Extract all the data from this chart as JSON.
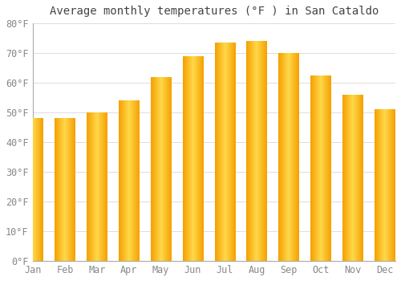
{
  "title": "Average monthly temperatures (°F ) in San Cataldo",
  "months": [
    "Jan",
    "Feb",
    "Mar",
    "Apr",
    "May",
    "Jun",
    "Jul",
    "Aug",
    "Sep",
    "Oct",
    "Nov",
    "Dec"
  ],
  "values": [
    48,
    48,
    50,
    54,
    62,
    69,
    73.5,
    74,
    70,
    62.5,
    56,
    51
  ],
  "bar_color_edge": "#F5A000",
  "bar_color_center": "#FFD84A",
  "ylim": [
    0,
    80
  ],
  "yticks": [
    0,
    10,
    20,
    30,
    40,
    50,
    60,
    70,
    80
  ],
  "ytick_labels": [
    "0°F",
    "10°F",
    "20°F",
    "30°F",
    "40°F",
    "50°F",
    "60°F",
    "70°F",
    "80°F"
  ],
  "background_color": "#FFFFFF",
  "grid_color": "#DDDDDD",
  "title_fontsize": 10,
  "tick_fontsize": 8.5,
  "title_color": "#444444",
  "tick_color": "#888888"
}
